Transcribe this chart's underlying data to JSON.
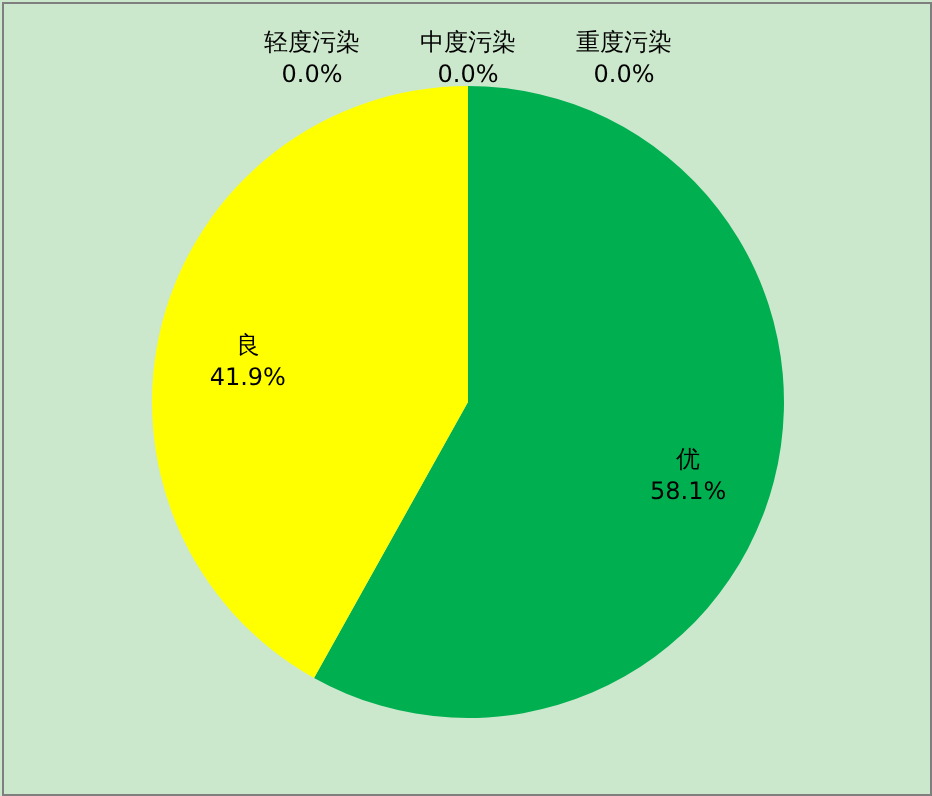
{
  "chart_data": {
    "type": "pie",
    "categories": [
      "优",
      "良",
      "轻度污染",
      "中度污染",
      "重度污染"
    ],
    "values": [
      58.1,
      41.9,
      0,
      0,
      0
    ],
    "colors": [
      "#00b050",
      "#ffff00",
      "#ff9900",
      "#ff0000",
      "#990099"
    ],
    "value_labels": [
      "58.1%",
      "41.9%",
      "0.0%",
      "0.0%",
      "0.0%"
    ]
  }
}
